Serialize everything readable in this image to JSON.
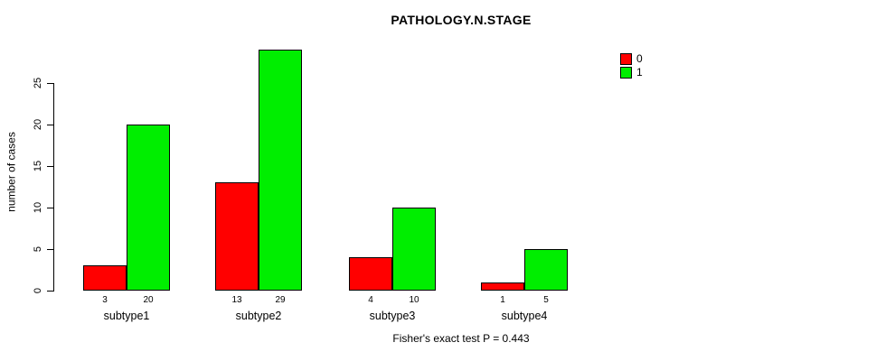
{
  "chart_data": {
    "type": "bar",
    "title": "PATHOLOGY.N.STAGE",
    "ylabel": "number of cases",
    "xlabel": "",
    "categories": [
      "subtype1",
      "subtype2",
      "subtype3",
      "subtype4"
    ],
    "series": [
      {
        "name": "0",
        "color": "#ff0000",
        "values": [
          3,
          13,
          4,
          1
        ]
      },
      {
        "name": "1",
        "color": "#00ee00",
        "values": [
          20,
          29,
          10,
          5
        ]
      }
    ],
    "bar_value_labels": [
      [
        "3",
        "20"
      ],
      [
        "13",
        "29"
      ],
      [
        "4",
        "10"
      ],
      [
        "1",
        "5"
      ]
    ],
    "yticks": [
      0,
      5,
      10,
      15,
      20,
      25
    ],
    "ylim": [
      0,
      29
    ],
    "grid": false,
    "legend_position": "top-right",
    "annotation": "Fisher's exact test P = 0.443"
  }
}
